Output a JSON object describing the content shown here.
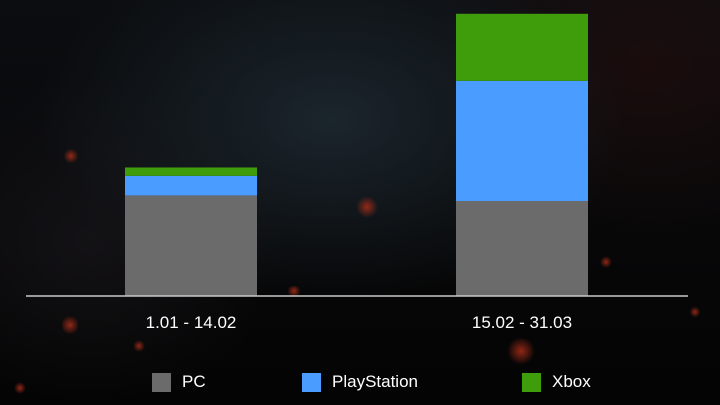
{
  "chart_data": {
    "type": "bar",
    "stacked": true,
    "categories": [
      "1.01 - 14.02",
      "15.02 - 31.03"
    ],
    "series": [
      {
        "name": "PC",
        "color": "#6b6b6b",
        "values": [
          36,
          34
        ]
      },
      {
        "name": "PlayStation",
        "color": "#4a9dff",
        "values": [
          7,
          43
        ]
      },
      {
        "name": "Xbox",
        "color": "#3f9c0b",
        "values": [
          3,
          24
        ]
      }
    ],
    "ylim": [
      0,
      102
    ],
    "grid": false,
    "legend": "bottom",
    "xlabel": "",
    "ylabel": "",
    "title": ""
  }
}
